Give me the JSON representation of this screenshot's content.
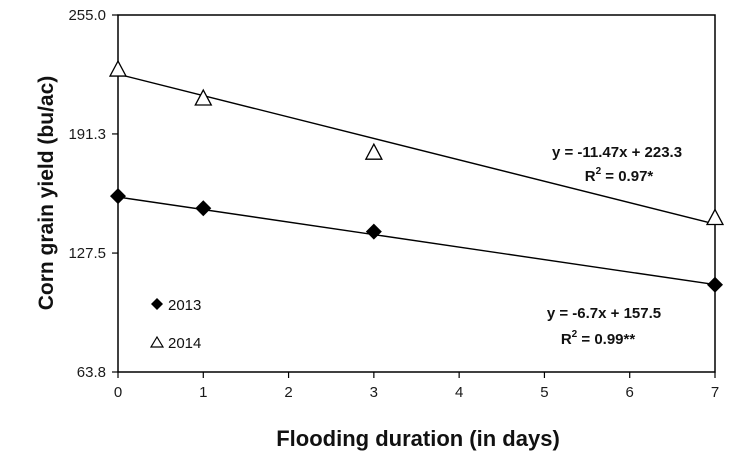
{
  "chart_data": {
    "type": "scatter",
    "xlabel": "Flooding duration (in days)",
    "ylabel": "Corn grain yield (bu/ac)",
    "xlim": [
      0,
      7
    ],
    "ylim": [
      63.8,
      255.0
    ],
    "x_ticks": [
      "0",
      "1",
      "2",
      "3",
      "4",
      "5",
      "6",
      "7"
    ],
    "y_ticks": [
      "63.8",
      "127.5",
      "191.3",
      "255.0"
    ],
    "grid": false,
    "legend_position": "bottom-left",
    "series": [
      {
        "name": "2013",
        "marker": "filled-diamond",
        "color": "#000000",
        "points": [
          [
            0,
            158.0
          ],
          [
            1,
            151.5
          ],
          [
            3,
            139.0
          ],
          [
            7,
            110.5
          ]
        ],
        "trendline": {
          "slope": -6.7,
          "intercept": 157.5
        },
        "equation": "y = -6.7x + 157.5",
        "r2_prefix": "R",
        "r2_sup": "2",
        "r2_suffix": " = 0.99**"
      },
      {
        "name": "2014",
        "marker": "open-triangle",
        "color": "#000000",
        "points": [
          [
            0,
            225.5
          ],
          [
            1,
            210.0
          ],
          [
            3,
            181.0
          ],
          [
            7,
            146.0
          ]
        ],
        "trendline": {
          "slope": -11.47,
          "intercept": 223.3
        },
        "equation": "y = -11.47x + 223.3",
        "r2_prefix": "R",
        "r2_sup": "2",
        "r2_suffix": " = 0.97*"
      }
    ]
  }
}
